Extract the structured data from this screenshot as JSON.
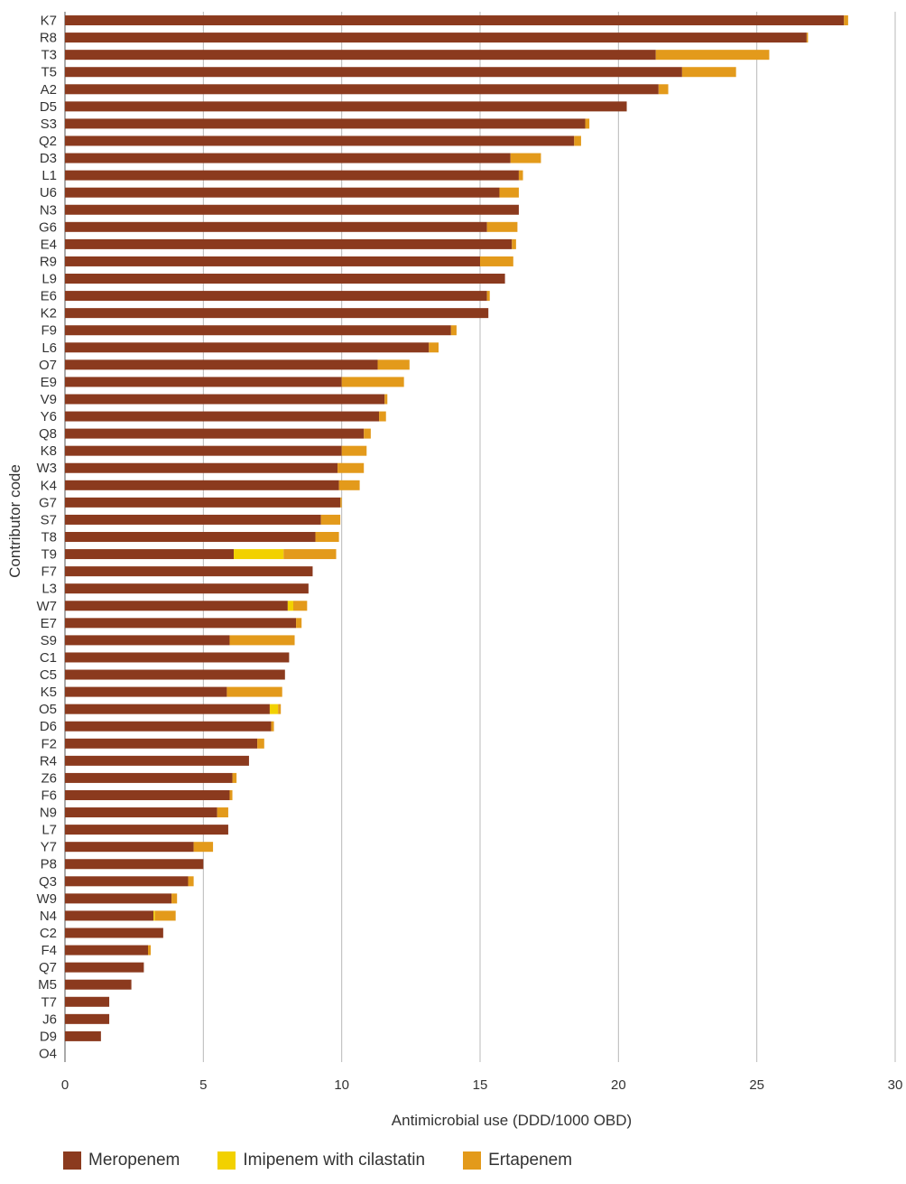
{
  "chart_data": {
    "type": "bar",
    "orientation": "horizontal",
    "stacked": true,
    "xlabel": "Antimicrobial use (DDD/1000 OBD)",
    "ylabel": "Contributor code",
    "xlim": [
      0,
      30
    ],
    "xticks": [
      "0",
      "5",
      "10",
      "15",
      "20",
      "25",
      "30"
    ],
    "grid": "vertical",
    "legend_position": "bottom",
    "categories": [
      "K7",
      "R8",
      "T3",
      "T5",
      "A2",
      "D5",
      "S3",
      "Q2",
      "D3",
      "L1",
      "U6",
      "N3",
      "G6",
      "E4",
      "R9",
      "L9",
      "E6",
      "K2",
      "F9",
      "L6",
      "O7",
      "E9",
      "V9",
      "Y6",
      "Q8",
      "K8",
      "W3",
      "K4",
      "G7",
      "S7",
      "T8",
      "T9",
      "F7",
      "L3",
      "W7",
      "E7",
      "S9",
      "C1",
      "C5",
      "K5",
      "O5",
      "D6",
      "F2",
      "R4",
      "Z6",
      "F6",
      "N9",
      "L7",
      "Y7",
      "P8",
      "Q3",
      "W9",
      "N4",
      "C2",
      "F4",
      "Q7",
      "M5",
      "T7",
      "J6",
      "D9",
      "O4"
    ],
    "series": [
      {
        "name": "Meropenem",
        "color": "#8b3a1e",
        "values": [
          28.15,
          26.8,
          21.35,
          22.3,
          21.45,
          20.3,
          18.8,
          18.4,
          16.1,
          16.4,
          15.7,
          16.4,
          15.25,
          16.15,
          15.0,
          15.9,
          15.25,
          15.3,
          13.95,
          13.15,
          11.3,
          10.0,
          11.55,
          11.35,
          10.8,
          10.0,
          9.85,
          9.9,
          9.95,
          9.25,
          9.05,
          6.1,
          8.95,
          8.8,
          8.05,
          8.35,
          5.95,
          8.1,
          7.95,
          5.85,
          7.4,
          7.45,
          6.95,
          6.65,
          6.05,
          5.95,
          5.5,
          5.9,
          4.65,
          5.0,
          4.45,
          3.85,
          3.2,
          3.55,
          3.0,
          2.85,
          2.4,
          1.6,
          1.6,
          1.3,
          0
        ]
      },
      {
        "name": "Imipenem with cilastatin",
        "color": "#f2d100",
        "values": [
          0,
          0,
          0,
          0,
          0,
          0,
          0,
          0,
          0,
          0,
          0,
          0,
          0,
          0,
          0,
          0,
          0,
          0,
          0,
          0,
          0,
          0,
          0,
          0,
          0,
          0,
          0,
          0,
          0,
          0,
          0,
          1.8,
          0,
          0,
          0.2,
          0,
          0,
          0,
          0,
          0,
          0.3,
          0,
          0,
          0,
          0,
          0,
          0,
          0,
          0,
          0,
          0,
          0,
          0.05,
          0,
          0,
          0,
          0,
          0,
          0,
          0,
          0
        ]
      },
      {
        "name": "Ertapenem",
        "color": "#e39a1b",
        "values": [
          0.15,
          0.05,
          4.1,
          1.95,
          0.35,
          0,
          0.15,
          0.25,
          1.1,
          0.15,
          0.7,
          0,
          1.1,
          0.15,
          1.2,
          0,
          0.1,
          0,
          0.2,
          0.35,
          1.15,
          2.25,
          0.1,
          0.25,
          0.25,
          0.9,
          0.95,
          0.75,
          0.05,
          0.7,
          0.85,
          1.9,
          0,
          0,
          0.5,
          0.2,
          2.35,
          0,
          0,
          2.0,
          0.1,
          0.1,
          0.25,
          0,
          0.15,
          0.1,
          0.4,
          0,
          0.7,
          0,
          0.2,
          0.2,
          0.75,
          0,
          0.1,
          0,
          0,
          0,
          0,
          0,
          0
        ]
      }
    ]
  }
}
